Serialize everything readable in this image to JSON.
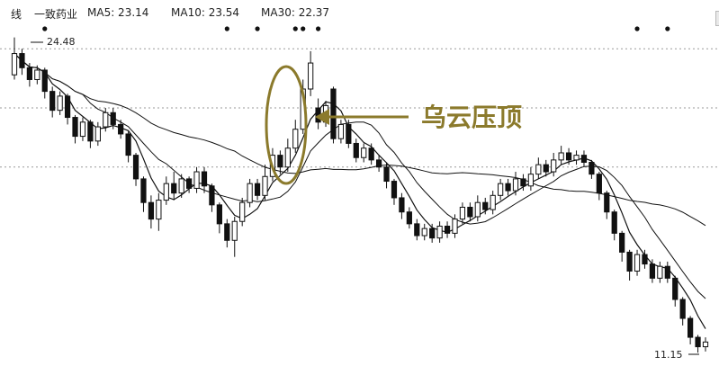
{
  "header": {
    "prefix": "线",
    "stock_name": "一致药业",
    "ma5": "MA5: 23.14",
    "ma10": "MA10: 23.54",
    "ma30": "MA30: 22.37"
  },
  "toolbar": {
    "icons": [
      "zoom-in-icon",
      "zoom-out-icon",
      "settings-icon"
    ]
  },
  "colors": {
    "grid": "#9a9a9a",
    "candle": "#111111",
    "annotation": "#8b7a2c"
  },
  "chart_data": {
    "type": "candlestick",
    "title": "一致药业",
    "ylim": [
      10.7,
      25.0
    ],
    "grid": true,
    "grid_levels": [
      24.0,
      21.5,
      19.0
    ],
    "annotation": "乌云压顶",
    "high_label": "24.48",
    "low_label": "11.15",
    "legend": [
      "MA5: 23.14",
      "MA10: 23.54",
      "MA30: 22.37"
    ],
    "event_markers": [
      4,
      28,
      32,
      37,
      38,
      40,
      82,
      86
    ],
    "candles": [
      {
        "o": 22.9,
        "c": 23.8,
        "h": 24.48,
        "l": 22.7
      },
      {
        "o": 23.8,
        "c": 23.2,
        "h": 24.0,
        "l": 22.9
      },
      {
        "o": 23.2,
        "c": 22.7,
        "h": 23.4,
        "l": 22.4
      },
      {
        "o": 22.7,
        "c": 23.1,
        "h": 23.3,
        "l": 22.5
      },
      {
        "o": 23.1,
        "c": 22.2,
        "h": 23.2,
        "l": 21.9
      },
      {
        "o": 22.2,
        "c": 21.4,
        "h": 22.4,
        "l": 21.1
      },
      {
        "o": 21.4,
        "c": 22.0,
        "h": 22.2,
        "l": 21.2
      },
      {
        "o": 22.0,
        "c": 21.1,
        "h": 22.1,
        "l": 20.8
      },
      {
        "o": 21.1,
        "c": 20.3,
        "h": 21.2,
        "l": 20.0
      },
      {
        "o": 20.3,
        "c": 20.9,
        "h": 21.1,
        "l": 20.1
      },
      {
        "o": 20.9,
        "c": 20.1,
        "h": 21.0,
        "l": 19.8
      },
      {
        "o": 20.1,
        "c": 20.7,
        "h": 20.9,
        "l": 19.9
      },
      {
        "o": 20.7,
        "c": 21.3,
        "h": 21.5,
        "l": 20.5
      },
      {
        "o": 21.3,
        "c": 20.8,
        "h": 21.5,
        "l": 20.6
      },
      {
        "o": 20.8,
        "c": 20.4,
        "h": 21.0,
        "l": 20.2
      },
      {
        "o": 20.4,
        "c": 19.5,
        "h": 20.5,
        "l": 19.2
      },
      {
        "o": 19.5,
        "c": 18.5,
        "h": 19.6,
        "l": 18.2
      },
      {
        "o": 18.5,
        "c": 17.5,
        "h": 18.6,
        "l": 17.1
      },
      {
        "o": 17.5,
        "c": 16.8,
        "h": 17.8,
        "l": 16.4
      },
      {
        "o": 16.8,
        "c": 17.6,
        "h": 17.9,
        "l": 16.3
      },
      {
        "o": 17.6,
        "c": 18.3,
        "h": 18.6,
        "l": 17.4
      },
      {
        "o": 18.3,
        "c": 17.9,
        "h": 18.8,
        "l": 17.6
      },
      {
        "o": 17.9,
        "c": 18.5,
        "h": 18.7,
        "l": 17.7
      },
      {
        "o": 18.5,
        "c": 18.1,
        "h": 18.6,
        "l": 17.9
      },
      {
        "o": 18.1,
        "c": 18.8,
        "h": 19.0,
        "l": 17.9
      },
      {
        "o": 18.8,
        "c": 18.2,
        "h": 19.0,
        "l": 17.9
      },
      {
        "o": 18.2,
        "c": 17.4,
        "h": 18.3,
        "l": 17.1
      },
      {
        "o": 17.4,
        "c": 16.6,
        "h": 17.5,
        "l": 16.2
      },
      {
        "o": 16.6,
        "c": 15.9,
        "h": 16.8,
        "l": 15.6
      },
      {
        "o": 15.9,
        "c": 16.7,
        "h": 16.9,
        "l": 15.2
      },
      {
        "o": 16.7,
        "c": 17.5,
        "h": 17.7,
        "l": 16.5
      },
      {
        "o": 17.5,
        "c": 18.3,
        "h": 18.5,
        "l": 17.3
      },
      {
        "o": 18.3,
        "c": 17.8,
        "h": 18.5,
        "l": 17.6
      },
      {
        "o": 17.8,
        "c": 18.6,
        "h": 19.1,
        "l": 17.6
      },
      {
        "o": 18.6,
        "c": 19.5,
        "h": 19.8,
        "l": 18.4
      },
      {
        "o": 19.5,
        "c": 19.0,
        "h": 19.7,
        "l": 18.7
      },
      {
        "o": 19.0,
        "c": 19.8,
        "h": 20.2,
        "l": 18.8
      },
      {
        "o": 19.8,
        "c": 20.6,
        "h": 21.0,
        "l": 19.6
      },
      {
        "o": 20.6,
        "c": 22.3,
        "h": 22.7,
        "l": 20.4
      },
      {
        "o": 22.3,
        "c": 23.4,
        "h": 23.9,
        "l": 22.0
      },
      {
        "o": 21.5,
        "c": 20.9,
        "h": 21.9,
        "l": 20.6
      },
      {
        "o": 20.9,
        "c": 21.6,
        "h": 21.8,
        "l": 20.7
      },
      {
        "o": 22.3,
        "c": 20.2,
        "h": 22.4,
        "l": 20.0
      },
      {
        "o": 20.2,
        "c": 20.8,
        "h": 21.0,
        "l": 20.0
      },
      {
        "o": 20.8,
        "c": 20.0,
        "h": 21.0,
        "l": 19.8
      },
      {
        "o": 20.0,
        "c": 19.4,
        "h": 20.2,
        "l": 19.2
      },
      {
        "o": 19.4,
        "c": 19.8,
        "h": 20.0,
        "l": 19.2
      },
      {
        "o": 19.8,
        "c": 19.3,
        "h": 20.0,
        "l": 19.1
      },
      {
        "o": 19.3,
        "c": 19.0,
        "h": 19.5,
        "l": 18.8
      },
      {
        "o": 19.0,
        "c": 18.4,
        "h": 19.2,
        "l": 18.1
      },
      {
        "o": 18.4,
        "c": 17.7,
        "h": 18.5,
        "l": 17.4
      },
      {
        "o": 17.7,
        "c": 17.1,
        "h": 17.9,
        "l": 16.8
      },
      {
        "o": 17.1,
        "c": 16.6,
        "h": 17.3,
        "l": 16.4
      },
      {
        "o": 16.6,
        "c": 16.1,
        "h": 16.8,
        "l": 15.9
      },
      {
        "o": 16.1,
        "c": 16.4,
        "h": 16.6,
        "l": 15.9
      },
      {
        "o": 16.4,
        "c": 16.0,
        "h": 16.6,
        "l": 15.8
      },
      {
        "o": 16.0,
        "c": 16.5,
        "h": 16.7,
        "l": 15.8
      },
      {
        "o": 16.5,
        "c": 16.2,
        "h": 16.7,
        "l": 16.0
      },
      {
        "o": 16.2,
        "c": 16.8,
        "h": 17.0,
        "l": 16.0
      },
      {
        "o": 16.8,
        "c": 17.3,
        "h": 17.5,
        "l": 16.6
      },
      {
        "o": 17.3,
        "c": 16.9,
        "h": 17.5,
        "l": 16.7
      },
      {
        "o": 16.9,
        "c": 17.5,
        "h": 17.8,
        "l": 16.7
      },
      {
        "o": 17.5,
        "c": 17.2,
        "h": 17.7,
        "l": 17.0
      },
      {
        "o": 17.2,
        "c": 17.8,
        "h": 18.0,
        "l": 17.0
      },
      {
        "o": 17.8,
        "c": 18.3,
        "h": 18.5,
        "l": 17.6
      },
      {
        "o": 18.3,
        "c": 18.0,
        "h": 18.5,
        "l": 17.8
      },
      {
        "o": 18.0,
        "c": 18.5,
        "h": 18.8,
        "l": 17.8
      },
      {
        "o": 18.5,
        "c": 18.2,
        "h": 18.7,
        "l": 18.0
      },
      {
        "o": 18.2,
        "c": 18.7,
        "h": 19.0,
        "l": 18.0
      },
      {
        "o": 18.7,
        "c": 19.1,
        "h": 19.4,
        "l": 18.5
      },
      {
        "o": 19.1,
        "c": 18.8,
        "h": 19.3,
        "l": 18.6
      },
      {
        "o": 18.8,
        "c": 19.3,
        "h": 19.6,
        "l": 18.6
      },
      {
        "o": 19.3,
        "c": 19.6,
        "h": 19.9,
        "l": 19.1
      },
      {
        "o": 19.6,
        "c": 19.3,
        "h": 19.8,
        "l": 19.1
      },
      {
        "o": 19.3,
        "c": 19.5,
        "h": 19.7,
        "l": 19.1
      },
      {
        "o": 19.5,
        "c": 19.2,
        "h": 19.7,
        "l": 19.0
      },
      {
        "o": 19.2,
        "c": 18.7,
        "h": 19.3,
        "l": 18.5
      },
      {
        "o": 18.7,
        "c": 17.9,
        "h": 18.8,
        "l": 17.6
      },
      {
        "o": 17.9,
        "c": 17.1,
        "h": 18.0,
        "l": 16.8
      },
      {
        "o": 17.1,
        "c": 16.2,
        "h": 17.2,
        "l": 15.9
      },
      {
        "o": 16.2,
        "c": 15.4,
        "h": 16.3,
        "l": 15.0
      },
      {
        "o": 15.4,
        "c": 14.6,
        "h": 15.5,
        "l": 14.2
      },
      {
        "o": 14.6,
        "c": 15.3,
        "h": 15.5,
        "l": 14.4
      },
      {
        "o": 15.3,
        "c": 14.9,
        "h": 15.5,
        "l": 14.7
      },
      {
        "o": 14.9,
        "c": 14.3,
        "h": 15.1,
        "l": 14.1
      },
      {
        "o": 14.3,
        "c": 14.8,
        "h": 15.0,
        "l": 14.1
      },
      {
        "o": 14.8,
        "c": 14.3,
        "h": 15.0,
        "l": 14.1
      },
      {
        "o": 14.3,
        "c": 13.4,
        "h": 14.4,
        "l": 13.1
      },
      {
        "o": 13.4,
        "c": 12.6,
        "h": 13.5,
        "l": 12.3
      },
      {
        "o": 12.6,
        "c": 11.8,
        "h": 12.7,
        "l": 11.5
      },
      {
        "o": 11.8,
        "c": 11.4,
        "h": 11.9,
        "l": 11.15
      },
      {
        "o": 11.4,
        "c": 11.6,
        "h": 11.8,
        "l": 11.2
      }
    ]
  }
}
